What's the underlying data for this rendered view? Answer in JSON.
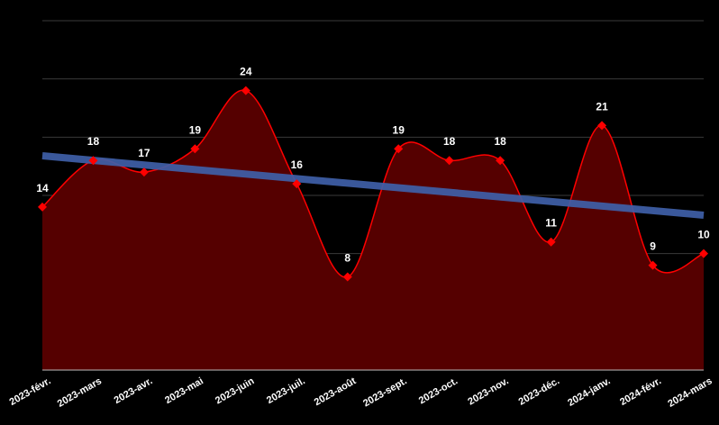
{
  "chart_data": {
    "type": "area",
    "categories": [
      "2023-févr.",
      "2023-mars",
      "2023-avr.",
      "2023-mai",
      "2023-juin",
      "2023-juil.",
      "2023-août",
      "2023-sept.",
      "2023-oct.",
      "2023-nov.",
      "2023-déc.",
      "2024-janv.",
      "2024-févr.",
      "2024-mars"
    ],
    "series": [
      {
        "values": [
          14,
          18,
          17,
          19,
          24,
          16,
          8,
          19,
          18,
          18,
          11,
          21,
          9,
          10
        ]
      }
    ],
    "trendline": {
      "start": 18.4,
      "end": 13.3
    },
    "data_labels": [
      "14",
      "18",
      "17",
      "19",
      "24",
      "16",
      "8",
      "19",
      "18",
      "18",
      "11",
      "21",
      "9",
      "10"
    ],
    "ylim": [
      0,
      30
    ],
    "grid": true,
    "colors": {
      "line": "#ff0000",
      "fill": "#550000",
      "marker": "#ff0000",
      "trend": "#3f5fa8",
      "background": "#000000"
    }
  }
}
